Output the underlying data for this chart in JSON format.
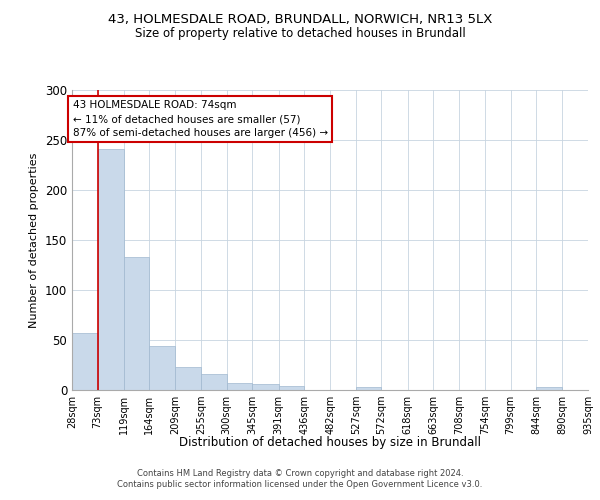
{
  "title1": "43, HOLMESDALE ROAD, BRUNDALL, NORWICH, NR13 5LX",
  "title2": "Size of property relative to detached houses in Brundall",
  "xlabel": "Distribution of detached houses by size in Brundall",
  "ylabel": "Number of detached properties",
  "footer1": "Contains HM Land Registry data © Crown copyright and database right 2024.",
  "footer2": "Contains public sector information licensed under the Open Government Licence v3.0.",
  "bar_color": "#c9d9ea",
  "bar_edge_color": "#a0b8d0",
  "grid_color": "#c8d4e0",
  "annotation_box_color": "#cc0000",
  "annotation_line_color": "#cc0000",
  "bins": [
    28,
    73,
    119,
    164,
    209,
    255,
    300,
    345,
    391,
    436,
    482,
    527,
    572,
    618,
    663,
    708,
    754,
    799,
    844,
    890,
    935
  ],
  "bin_labels": [
    "28sqm",
    "73sqm",
    "119sqm",
    "164sqm",
    "209sqm",
    "255sqm",
    "300sqm",
    "345sqm",
    "391sqm",
    "436sqm",
    "482sqm",
    "527sqm",
    "572sqm",
    "618sqm",
    "663sqm",
    "708sqm",
    "754sqm",
    "799sqm",
    "844sqm",
    "890sqm",
    "935sqm"
  ],
  "values": [
    57,
    241,
    133,
    44,
    23,
    16,
    7,
    6,
    4,
    0,
    0,
    3,
    0,
    0,
    0,
    0,
    0,
    0,
    3,
    0
  ],
  "property_size": 74,
  "annotation_line1": "43 HOLMESDALE ROAD: 74sqm",
  "annotation_line2": "← 11% of detached houses are smaller (57)",
  "annotation_line3": "87% of semi-detached houses are larger (456) →",
  "ylim": [
    0,
    300
  ],
  "yticks": [
    0,
    50,
    100,
    150,
    200,
    250,
    300
  ]
}
